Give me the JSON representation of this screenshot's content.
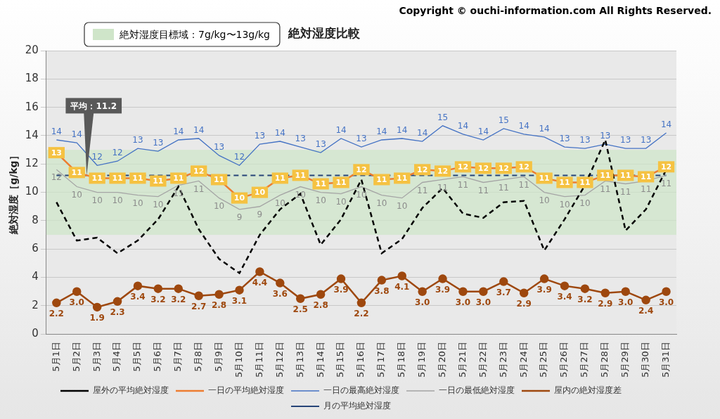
{
  "chart_data": {
    "type": "line",
    "title": "絶対湿度比較",
    "copyright": "Copyright © ouchi-information.com All Rights Reserved.",
    "y_label": "絶対湿度［g/kg］",
    "target_zone": {
      "label": "絶対湿度目標域：7g/kg〜13g/kg",
      "range": [
        7,
        13
      ],
      "color": "#cfe5c9"
    },
    "categories": [
      "5月1日",
      "5月2日",
      "5月3日",
      "5月4日",
      "5月5日",
      "5月6日",
      "5月7日",
      "5月8日",
      "5月9日",
      "5月10日",
      "5月11日",
      "5月12日",
      "5月13日",
      "5月14日",
      "5月15日",
      "5月16日",
      "5月17日",
      "5月18日",
      "5月19日",
      "5月20日",
      "5月21日",
      "5月22日",
      "5月23日",
      "5月24日",
      "5月25日",
      "5月26日",
      "5月27日",
      "5月28日",
      "5月29日",
      "5月30日",
      "5月31日"
    ],
    "series": [
      {
        "name": "屋外の平均絶対湿度",
        "color": "#000000",
        "line_style": "dashed",
        "data_labels": false,
        "values": [
          9.3,
          6.6,
          6.8,
          5.7,
          6.6,
          8.1,
          10.4,
          7.4,
          5.3,
          4.3,
          7.0,
          8.8,
          9.9,
          6.3,
          8.1,
          10.9,
          5.7,
          6.7,
          8.9,
          10.3,
          8.5,
          8.2,
          9.3,
          9.4,
          5.9,
          8.1,
          10.5,
          13.7,
          7.3,
          8.8,
          11.6
        ]
      },
      {
        "name": "一日の平均絶対湿度",
        "color": "#ed7d31",
        "line_style": "solid",
        "data_labels": true,
        "values": [
          12.8,
          11.4,
          11.0,
          11.0,
          11.0,
          10.8,
          11.0,
          11.5,
          10.9,
          9.6,
          10.0,
          11.0,
          11.2,
          10.6,
          10.7,
          11.6,
          10.9,
          11.0,
          11.6,
          11.5,
          11.8,
          11.7,
          11.7,
          11.8,
          11.0,
          10.7,
          10.7,
          11.2,
          11.2,
          11.1,
          11.8
        ],
        "value_labels": [
          "13",
          "11",
          "11",
          "11",
          "11",
          "11",
          "11",
          "12",
          "11",
          "10",
          "10",
          "11",
          "11",
          "11",
          "11",
          "12",
          "11",
          "11",
          "12",
          "12",
          "12",
          "12",
          "12",
          "12",
          "11",
          "11",
          "11",
          "11",
          "11",
          "11",
          "12"
        ]
      },
      {
        "name": "一日の最高絶対湿度",
        "color": "#4472c4",
        "line_style": "solid",
        "data_labels": true,
        "values": [
          13.7,
          13.5,
          11.9,
          12.2,
          13.1,
          12.9,
          13.7,
          13.8,
          12.6,
          11.9,
          13.4,
          13.6,
          13.2,
          12.8,
          13.8,
          13.2,
          13.7,
          13.8,
          13.6,
          14.7,
          14.1,
          13.7,
          14.5,
          14.1,
          13.9,
          13.2,
          13.1,
          13.4,
          13.1,
          13.1,
          14.2
        ],
        "value_labels": [
          "14",
          "14",
          "12",
          "12",
          "13",
          "13",
          "14",
          "14",
          "13",
          "12",
          "13",
          "14",
          "13",
          "13",
          "14",
          "13",
          "14",
          "14",
          "14",
          "15",
          "14",
          "14",
          "15",
          "14",
          "14",
          "13",
          "13",
          "13",
          "13",
          "13",
          "14"
        ]
      },
      {
        "name": "一日の最低絶対湿度",
        "color": "#a5a5a5",
        "line_style": "solid",
        "data_labels": true,
        "values": [
          11.6,
          10.4,
          10.0,
          10.0,
          9.8,
          9.7,
          10.5,
          10.8,
          9.6,
          8.8,
          9.0,
          9.8,
          10.4,
          10.0,
          9.9,
          10.4,
          9.8,
          9.6,
          10.7,
          10.9,
          11.1,
          10.7,
          10.9,
          11.1,
          10.0,
          9.7,
          9.8,
          10.8,
          10.6,
          10.8,
          11.2
        ],
        "value_labels": [
          "12",
          "10",
          "10",
          "10",
          "10",
          "10",
          "11",
          "11",
          "10",
          "9",
          "9",
          "10",
          "10",
          "10",
          "10",
          "10",
          "10",
          "10",
          "11",
          "11",
          "11",
          "11",
          "11",
          "11",
          "10",
          "10",
          "10",
          "11",
          "11",
          "11",
          "11"
        ]
      },
      {
        "name": "屋内の絶対湿度差",
        "color": "#9e480e",
        "line_style": "solid",
        "marker": "circle",
        "data_labels": true,
        "values": [
          2.2,
          3.0,
          1.9,
          2.3,
          3.4,
          3.2,
          3.2,
          2.7,
          2.8,
          3.1,
          4.4,
          3.6,
          2.5,
          2.8,
          3.9,
          2.2,
          3.8,
          4.1,
          3.0,
          3.9,
          3.0,
          3.0,
          3.7,
          2.9,
          3.9,
          3.4,
          3.2,
          2.9,
          3.0,
          2.4,
          3.0
        ],
        "value_labels": [
          "2.2",
          "3.0",
          "1.9",
          "2.3",
          "3.4",
          "3.2",
          "3.2",
          "2.7",
          "2.8",
          "3.1",
          "4.4",
          "3.6",
          "2.5",
          "2.8",
          "3.9",
          "2.2",
          "3.8",
          "4.1",
          "3.0",
          "3.9",
          "3.0",
          "3.0",
          "3.7",
          "2.9",
          "3.9",
          "3.4",
          "3.2",
          "2.9",
          "3.0",
          "2.4",
          "3.0"
        ]
      },
      {
        "name": "月の平均絶対湿度",
        "color": "#264478",
        "line_style": "dashed",
        "data_labels": false,
        "values": [
          11.2,
          11.2,
          11.2,
          11.2,
          11.2,
          11.2,
          11.2,
          11.2,
          11.2,
          11.2,
          11.2,
          11.2,
          11.2,
          11.2,
          11.2,
          11.2,
          11.2,
          11.2,
          11.2,
          11.2,
          11.2,
          11.2,
          11.2,
          11.2,
          11.2,
          11.2,
          11.2,
          11.2,
          11.2,
          11.2,
          11.2
        ]
      }
    ],
    "annotations": [
      {
        "text": "平均：11.2",
        "x": "5月2日",
        "y": 11.2
      }
    ],
    "ylim": [
      0,
      20
    ],
    "yticks": [
      0,
      2,
      4,
      6,
      8,
      10,
      12,
      14,
      16,
      18,
      20
    ],
    "grid": true,
    "legend": "bottom"
  }
}
